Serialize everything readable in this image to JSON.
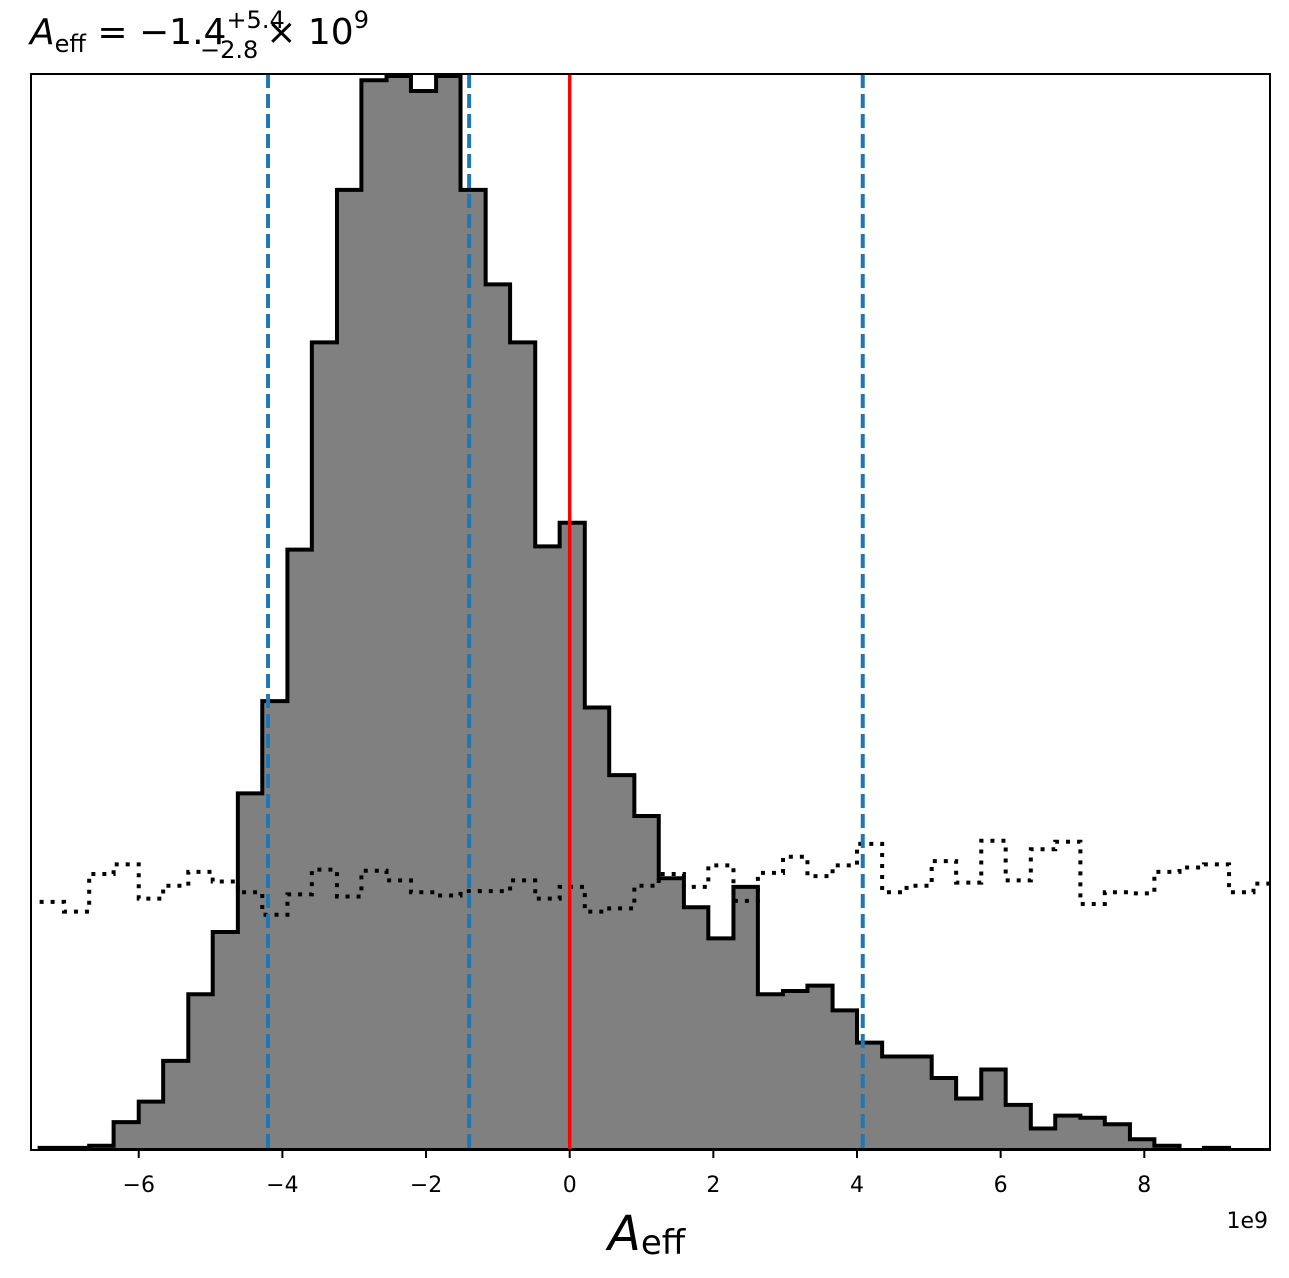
{
  "chart_data": {
    "type": "histogram",
    "title": {
      "symbol": "A",
      "symbol_subscript": "eff",
      "median": "−1.4",
      "upper_error": "+5.4",
      "lower_error": "−2.8",
      "multiplier": "× 10",
      "multiplier_exponent": "9"
    },
    "xlabel": {
      "symbol": "A",
      "subscript": "eff"
    },
    "x_offset_label": "1e9",
    "xlim": [
      -7.5,
      9.75
    ],
    "ylim": [
      0,
      1.0
    ],
    "x_unit_multiplier": 1000000000,
    "yticks_shown": false,
    "grid": false,
    "xticks": [
      {
        "value": -6,
        "label": "−6"
      },
      {
        "value": -4,
        "label": "−4"
      },
      {
        "value": -2,
        "label": "−2"
      },
      {
        "value": 0,
        "label": "0"
      },
      {
        "value": 2,
        "label": "2"
      },
      {
        "value": 4,
        "label": "4"
      },
      {
        "value": 6,
        "label": "6"
      },
      {
        "value": 8,
        "label": "8"
      }
    ],
    "bin_edges": [
      -7.38,
      -7.04,
      -6.69,
      -6.35,
      -6.0,
      -5.66,
      -5.31,
      -4.97,
      -4.62,
      -4.28,
      -3.93,
      -3.59,
      -3.24,
      -2.9,
      -2.55,
      -2.21,
      -1.86,
      -1.52,
      -1.17,
      -0.83,
      -0.48,
      -0.14,
      0.21,
      0.55,
      0.9,
      1.24,
      1.59,
      1.93,
      2.28,
      2.62,
      2.97,
      3.31,
      3.66,
      4.0,
      4.35,
      4.69,
      5.04,
      5.38,
      5.73,
      6.07,
      6.42,
      6.76,
      7.11,
      7.45,
      7.8,
      8.14,
      8.49,
      8.83,
      9.18,
      9.52,
      9.75
    ],
    "series": [
      {
        "name": "",
        "style": "step-filled",
        "fill": "#808080",
        "edge_color": "#000000",
        "values": [
          0.002,
          0.002,
          0.004,
          0.026,
          0.045,
          0.083,
          0.145,
          0.203,
          0.332,
          0.418,
          0.559,
          0.752,
          0.894,
          0.996,
          1.0,
          0.986,
          1.0,
          0.894,
          0.806,
          0.752,
          0.562,
          0.584,
          0.412,
          0.349,
          0.311,
          0.253,
          0.226,
          0.197,
          0.245,
          0.145,
          0.148,
          0.153,
          0.13,
          0.1,
          0.087,
          0.087,
          0.067,
          0.048,
          0.075,
          0.042,
          0.02,
          0.032,
          0.03,
          0.024,
          0.01,
          0.004,
          0.0,
          0.002,
          0.0,
          0.0
        ]
      },
      {
        "name": "",
        "style": "step-dotted",
        "edge_color": "#000000",
        "values": [
          0.231,
          0.222,
          0.257,
          0.266,
          0.234,
          0.246,
          0.259,
          0.25,
          0.24,
          0.219,
          0.238,
          0.261,
          0.236,
          0.26,
          0.251,
          0.24,
          0.237,
          0.241,
          0.241,
          0.251,
          0.234,
          0.245,
          0.222,
          0.225,
          0.246,
          0.257,
          0.245,
          0.265,
          0.232,
          0.258,
          0.273,
          0.255,
          0.265,
          0.285,
          0.24,
          0.246,
          0.269,
          0.249,
          0.288,
          0.251,
          0.28,
          0.287,
          0.229,
          0.24,
          0.239,
          0.259,
          0.263,
          0.266,
          0.24,
          0.248
        ]
      }
    ],
    "vertical_lines": [
      {
        "x": -4.2,
        "color": "#1f77b4",
        "style": "dashed"
      },
      {
        "x": -1.4,
        "color": "#1f77b4",
        "style": "dashed"
      },
      {
        "x": 4.08,
        "color": "#1f77b4",
        "style": "dashed"
      },
      {
        "x": 0,
        "color": "#ff0000",
        "style": "solid"
      }
    ]
  }
}
